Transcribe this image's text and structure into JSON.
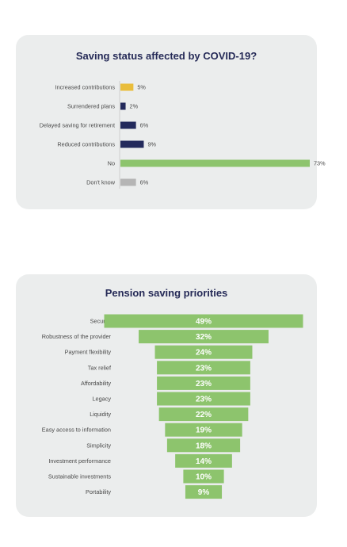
{
  "charts": [
    {
      "title": "Saving status affected by COVID-19?",
      "chart_data": {
        "type": "bar",
        "orientation": "horizontal",
        "title": "Saving status affected by COVID-19?",
        "categories": [
          "Increased contributions",
          "Surrendered plans",
          "Delayed saving for retirement",
          "Reduced contributions",
          "No",
          "Don't know"
        ],
        "values": [
          5,
          2,
          6,
          9,
          73,
          6
        ],
        "value_labels": [
          "5%",
          "2%",
          "6%",
          "9%",
          "73%",
          "6%"
        ],
        "colors": [
          "#e9bd3b",
          "#232a5c",
          "#232a5c",
          "#232a5c",
          "#8dc46d",
          "#b5b5b5"
        ],
        "xlim": [
          0,
          73
        ],
        "grid": false,
        "legend": "none"
      }
    },
    {
      "title": "Pension saving priorities",
      "chart_data": {
        "type": "bar",
        "orientation": "horizontal",
        "style": "centered funnel",
        "title": "Pension saving priorities",
        "categories": [
          "Security",
          "Robustness of the provider",
          "Payment flexibility",
          "Tax relief",
          "Affordability",
          "Legacy",
          "Liquidity",
          "Easy access to information",
          "Simplicity",
          "Investment performance",
          "Sustainable investments",
          "Portability"
        ],
        "values": [
          49,
          32,
          24,
          23,
          23,
          23,
          22,
          19,
          18,
          14,
          10,
          9
        ],
        "value_labels": [
          "49%",
          "32%",
          "24%",
          "23%",
          "23%",
          "23%",
          "22%",
          "19%",
          "18%",
          "14%",
          "10%",
          "9%"
        ],
        "color": "#8dc46d",
        "grid": false,
        "legend": "none"
      }
    }
  ]
}
